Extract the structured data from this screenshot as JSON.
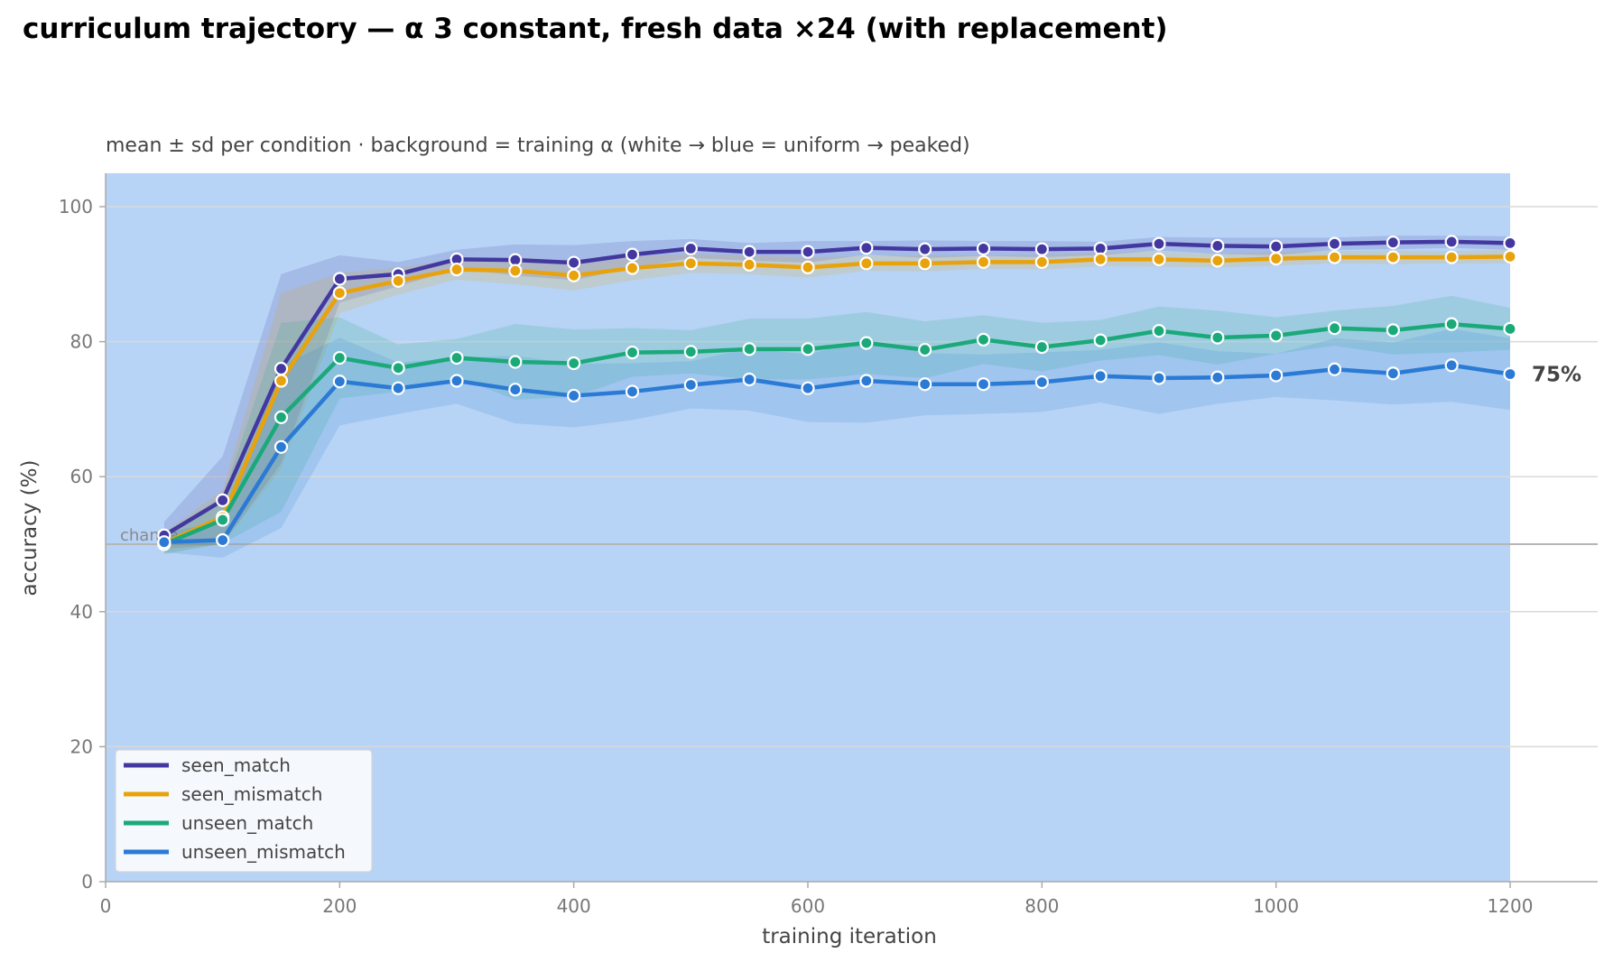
{
  "title": "curriculum trajectory — α 3 constant, fresh data ×24 (with replacement)",
  "chart_data": {
    "type": "line",
    "subtitle": "mean ± sd per condition · background = training α (white → blue = uniform → peaked)",
    "xlabel": "training iteration",
    "ylabel": "accuracy (%)",
    "xlim": [
      0,
      1270
    ],
    "ylim": [
      0,
      105
    ],
    "x_ticks": [
      0,
      200,
      400,
      600,
      800,
      1000,
      1200
    ],
    "y_ticks": [
      0,
      20,
      40,
      60,
      80,
      100
    ],
    "grid": "horizontal",
    "background_band": {
      "x_range": [
        0,
        1200
      ],
      "color": "#b7d3f5",
      "meaning": "training α"
    },
    "reference_line": {
      "y": 50,
      "label": "chance",
      "color": "#b5b5b5"
    },
    "end_annotation": {
      "series": "unseen_mismatch",
      "text": "75%",
      "y": 75.2
    },
    "legend_position": "lower-left",
    "x": [
      50,
      100,
      150,
      200,
      250,
      300,
      350,
      400,
      450,
      500,
      550,
      600,
      650,
      700,
      750,
      800,
      850,
      900,
      950,
      1000,
      1050,
      1100,
      1150,
      1200
    ],
    "series": [
      {
        "name": "seen_match",
        "color": "#4338a0",
        "values": [
          51.3,
          56.5,
          76.0,
          89.3,
          90.0,
          92.2,
          92.1,
          91.7,
          92.9,
          93.8,
          93.3,
          93.3,
          93.9,
          93.7,
          93.8,
          93.7,
          93.8,
          94.5,
          94.2,
          94.1,
          94.5,
          94.7,
          94.8,
          94.6
        ],
        "sd": [
          2.0,
          6.5,
          14.0,
          3.5,
          1.8,
          1.4,
          2.3,
          2.6,
          2.0,
          1.4,
          1.3,
          1.6,
          1.0,
          1.3,
          1.1,
          1.2,
          1.0,
          1.0,
          1.2,
          1.3,
          0.9,
          1.0,
          0.9,
          1.0
        ]
      },
      {
        "name": "seen_mismatch",
        "color": "#e8a20c",
        "values": [
          50.2,
          54.0,
          74.2,
          87.2,
          89.0,
          90.7,
          90.5,
          89.8,
          90.9,
          91.6,
          91.4,
          91.0,
          91.6,
          91.6,
          91.8,
          91.8,
          92.2,
          92.2,
          92.0,
          92.3,
          92.5,
          92.5,
          92.5,
          92.6
        ],
        "sd": [
          1.5,
          4.0,
          13.0,
          3.0,
          2.0,
          1.5,
          2.0,
          2.2,
          1.8,
          1.4,
          1.4,
          1.5,
          1.1,
          1.2,
          1.0,
          1.1,
          1.0,
          1.1,
          1.0,
          1.0,
          0.9,
          1.0,
          0.9,
          1.0
        ]
      },
      {
        "name": "unseen_match",
        "color": "#1ba97a",
        "values": [
          50.0,
          53.6,
          68.8,
          77.6,
          76.1,
          77.6,
          77.0,
          76.8,
          78.4,
          78.5,
          78.9,
          78.9,
          79.8,
          78.8,
          80.3,
          79.2,
          80.2,
          81.6,
          80.6,
          80.9,
          82.0,
          81.7,
          82.6,
          81.9
        ],
        "sd": [
          1.5,
          3.5,
          14.0,
          6.0,
          3.5,
          2.8,
          5.6,
          5.0,
          3.6,
          3.2,
          4.5,
          4.5,
          4.6,
          4.2,
          3.6,
          3.6,
          3.0,
          3.6,
          4.0,
          2.7,
          2.6,
          3.6,
          4.2,
          3.1
        ]
      },
      {
        "name": "unseen_mismatch",
        "color": "#2b7ad4",
        "values": [
          50.3,
          50.6,
          64.4,
          74.1,
          73.1,
          74.2,
          72.9,
          72.0,
          72.6,
          73.6,
          74.4,
          73.1,
          74.2,
          73.7,
          73.7,
          74.0,
          74.9,
          74.6,
          74.7,
          75.0,
          75.9,
          75.3,
          76.5,
          75.2
        ],
        "sd": [
          1.5,
          2.6,
          12.0,
          6.5,
          3.8,
          3.4,
          5.0,
          4.7,
          4.2,
          3.5,
          4.6,
          5.0,
          6.2,
          4.6,
          4.4,
          4.4,
          3.9,
          5.3,
          3.9,
          3.2,
          4.6,
          4.6,
          5.4,
          5.3
        ]
      }
    ]
  }
}
